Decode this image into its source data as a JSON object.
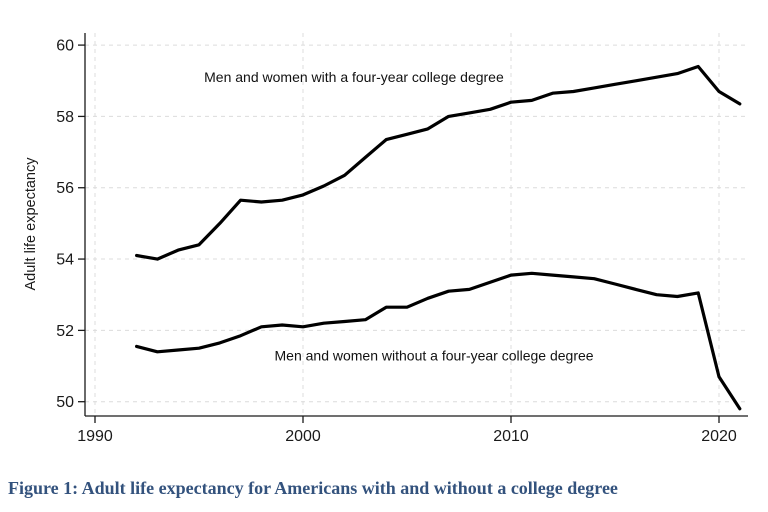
{
  "figure": {
    "caption": "Figure 1: Adult life expectancy for Americans with and without a college degree",
    "caption_color": "#33527d",
    "background_color": "#ffffff"
  },
  "chart_data": {
    "type": "line",
    "title": "",
    "xlabel": "",
    "ylabel": "Adult life expectancy",
    "xlim": [
      1989.5,
      2021.4
    ],
    "ylim": [
      49.6,
      60.3
    ],
    "xticks": [
      1990,
      2000,
      2010,
      2020
    ],
    "yticks": [
      50,
      52,
      54,
      56,
      58,
      60
    ],
    "grid": true,
    "grid_color": "#dcdcdc",
    "axis_color": "#1a1a1a",
    "line_color": "#000000",
    "legend_position": "inline-annotations",
    "x": [
      1992,
      1993,
      1994,
      1995,
      1996,
      1997,
      1998,
      1999,
      2000,
      2001,
      2002,
      2003,
      2004,
      2005,
      2006,
      2007,
      2008,
      2009,
      2010,
      2011,
      2012,
      2013,
      2014,
      2015,
      2016,
      2017,
      2018,
      2019,
      2020,
      2021
    ],
    "series": [
      {
        "name": "Men and women with a four-year college degree",
        "values": [
          54.1,
          54.0,
          54.25,
          54.4,
          55.0,
          55.65,
          55.6,
          55.65,
          55.8,
          56.05,
          56.35,
          56.85,
          57.35,
          57.5,
          57.65,
          58.0,
          58.1,
          58.2,
          58.4,
          58.45,
          58.65,
          58.7,
          58.8,
          58.9,
          59.0,
          59.1,
          59.2,
          59.4,
          58.7,
          58.35
        ]
      },
      {
        "name": "Men and women without a four-year college degree",
        "values": [
          51.55,
          51.4,
          51.45,
          51.5,
          51.65,
          51.85,
          52.1,
          52.15,
          52.1,
          52.2,
          52.25,
          52.3,
          52.65,
          52.65,
          52.9,
          53.1,
          53.15,
          53.35,
          53.55,
          53.6,
          53.55,
          53.5,
          53.45,
          53.3,
          53.15,
          53.0,
          52.95,
          53.05,
          50.7,
          49.8
        ]
      }
    ],
    "annotations": [
      {
        "text": "Men and women with a four-year college degree",
        "x": 2002.45,
        "y": 59.1
      },
      {
        "text": "Men and women without a four-year college degree",
        "x": 2006.3,
        "y": 51.3
      }
    ]
  }
}
